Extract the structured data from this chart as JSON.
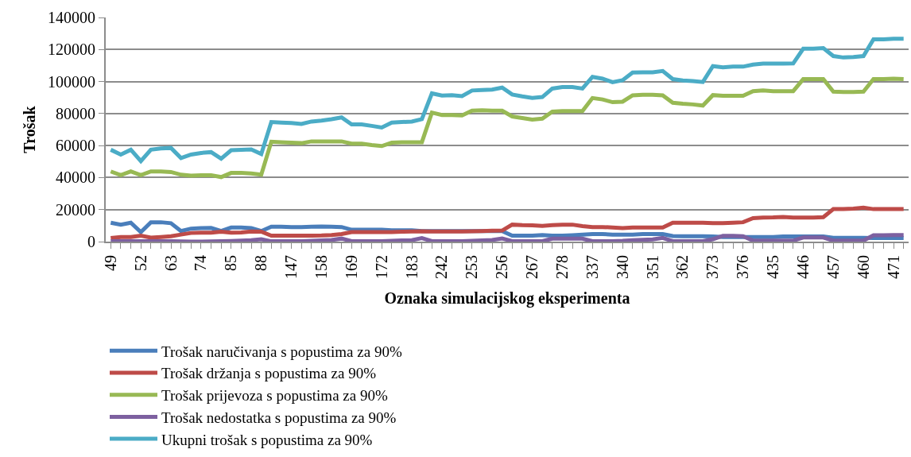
{
  "chart_data": {
    "type": "line",
    "xlabel": "Oznaka simulacijskog eksperimenta",
    "ylabel": "Trošak",
    "categories": [
      "49",
      null,
      null,
      "52",
      null,
      null,
      "63",
      null,
      null,
      "74",
      null,
      null,
      "85",
      null,
      null,
      "88",
      null,
      null,
      "147",
      null,
      null,
      "158",
      null,
      null,
      "169",
      null,
      null,
      "172",
      null,
      null,
      "183",
      null,
      null,
      "242",
      null,
      null,
      "253",
      null,
      null,
      "256",
      null,
      null,
      "267",
      null,
      null,
      "278",
      null,
      null,
      "337",
      null,
      null,
      "340",
      null,
      null,
      "351",
      null,
      null,
      "362",
      null,
      null,
      "373",
      null,
      null,
      "376",
      null,
      null,
      "435",
      null,
      null,
      "446",
      null,
      null,
      "457",
      null,
      null,
      "460",
      null,
      null,
      "471",
      null
    ],
    "ylim": [
      0,
      140000
    ],
    "yticks": [
      0,
      20000,
      40000,
      60000,
      80000,
      100000,
      120000,
      140000
    ],
    "grid": "y",
    "legend": "bottom",
    "marker": "none",
    "line_style": "solid",
    "series": [
      {
        "name": "Trošak naručivanja s popustima za 90%",
        "color": "#4a7ebb",
        "values": [
          11800,
          10600,
          11800,
          5900,
          12100,
          12100,
          11500,
          6600,
          8100,
          8400,
          8500,
          6600,
          8800,
          8800,
          8500,
          6600,
          9300,
          9300,
          9100,
          9100,
          9300,
          9400,
          9300,
          9100,
          7400,
          7400,
          7400,
          7400,
          7100,
          7100,
          7100,
          6600,
          6600,
          6600,
          6600,
          6600,
          6600,
          6600,
          6600,
          6600,
          3700,
          3700,
          3700,
          4100,
          3700,
          3700,
          4000,
          4400,
          4700,
          4700,
          4400,
          4400,
          4400,
          4700,
          4700,
          4700,
          3500,
          3400,
          3400,
          3400,
          3200,
          2900,
          2900,
          2900,
          2900,
          2900,
          2900,
          3200,
          3200,
          3200,
          3200,
          3200,
          2400,
          2400,
          2400,
          2400,
          2200,
          2200,
          2200,
          2200
        ]
      },
      {
        "name": "Trošak držanja s popustima za 90%",
        "color": "#be4b48",
        "values": [
          2200,
          2900,
          2900,
          3700,
          2500,
          2900,
          3400,
          4400,
          5400,
          5600,
          5600,
          6200,
          5600,
          5700,
          6300,
          6200,
          3700,
          3700,
          3700,
          3700,
          3700,
          3800,
          4100,
          4700,
          5900,
          5900,
          5900,
          5900,
          6000,
          6200,
          6300,
          6500,
          6300,
          6300,
          6300,
          6300,
          6500,
          6600,
          6800,
          6900,
          10600,
          10300,
          10200,
          9800,
          10300,
          10600,
          10600,
          9700,
          9100,
          9100,
          8800,
          8500,
          8800,
          8800,
          8800,
          8800,
          11800,
          11800,
          11800,
          11800,
          11500,
          11500,
          11800,
          12100,
          14700,
          15000,
          15100,
          15400,
          15000,
          15000,
          15000,
          15300,
          20300,
          20300,
          20600,
          21200,
          20300,
          20300,
          20300,
          20300
        ]
      },
      {
        "name": "Trošak prijevoza s popustima za 90%",
        "color": "#98b954",
        "values": [
          43800,
          41500,
          43800,
          41500,
          43800,
          43800,
          43500,
          41800,
          41200,
          41500,
          41500,
          40300,
          42900,
          42900,
          42600,
          41800,
          62400,
          62100,
          61800,
          61500,
          62600,
          62600,
          62600,
          62600,
          61200,
          61200,
          60300,
          59700,
          61800,
          62100,
          62100,
          62100,
          80600,
          79100,
          79100,
          78800,
          81800,
          82100,
          81800,
          81800,
          78200,
          77200,
          76200,
          76800,
          81200,
          81500,
          81500,
          81500,
          89700,
          88800,
          87100,
          87400,
          91400,
          91700,
          91700,
          91400,
          86700,
          86100,
          85700,
          85000,
          91500,
          91100,
          91100,
          91100,
          94000,
          94500,
          94000,
          94000,
          94000,
          101500,
          101500,
          101500,
          93700,
          93400,
          93400,
          93700,
          101500,
          101500,
          101800,
          101500
        ]
      },
      {
        "name": "Trošak nedostatka s popustima za 90%",
        "color": "#7d60a0",
        "values": [
          300,
          200,
          200,
          300,
          300,
          300,
          200,
          100,
          0,
          0,
          100,
          200,
          400,
          600,
          900,
          1500,
          200,
          200,
          200,
          300,
          500,
          800,
          1000,
          1900,
          300,
          300,
          300,
          300,
          500,
          700,
          900,
          2200,
          300,
          300,
          300,
          300,
          500,
          800,
          1000,
          2000,
          300,
          300,
          300,
          300,
          1800,
          1800,
          1800,
          1800,
          300,
          300,
          300,
          500,
          900,
          1100,
          1400,
          2300,
          300,
          300,
          300,
          300,
          1500,
          3600,
          3600,
          3400,
          600,
          600,
          600,
          600,
          600,
          2600,
          2600,
          2600,
          600,
          600,
          600,
          600,
          4000,
          4000,
          4100,
          4100
        ]
      },
      {
        "name": "Ukupni trošak s popustima za 90%",
        "color": "#4bacc6",
        "values": [
          57400,
          54400,
          57400,
          50300,
          57400,
          58200,
          58500,
          52200,
          54400,
          55400,
          55900,
          51800,
          57100,
          57400,
          57600,
          54700,
          74700,
          74400,
          74100,
          73500,
          75000,
          75600,
          76500,
          77600,
          73200,
          73200,
          72300,
          71300,
          74400,
          74700,
          75000,
          76500,
          92600,
          91200,
          91500,
          90900,
          94400,
          94700,
          95000,
          96200,
          91900,
          90700,
          89700,
          90300,
          95600,
          96500,
          96500,
          95600,
          102900,
          101800,
          99600,
          100800,
          105600,
          105800,
          105800,
          106600,
          101500,
          100700,
          100300,
          99700,
          109600,
          108900,
          109300,
          109300,
          110600,
          111200,
          111200,
          111200,
          111300,
          120500,
          120500,
          120900,
          115900,
          115000,
          115300,
          115900,
          126400,
          126400,
          126700,
          126700
        ]
      }
    ]
  }
}
